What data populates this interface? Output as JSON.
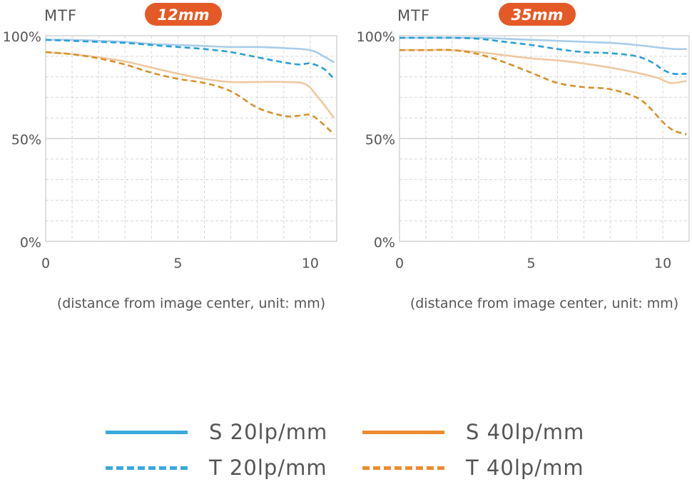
{
  "colors": {
    "s20": "#a8cdea",
    "t20": "#2a9fd4",
    "s40": "#efc9a2",
    "t40": "#d4912d",
    "badge": "#e45a26",
    "grid": "#c8c8c8",
    "axis_text": "#555555"
  },
  "legend": [
    {
      "key": "s20",
      "label": "S 20lp/mm",
      "style": "solid",
      "color": "#3aa9da"
    },
    {
      "key": "s40",
      "label": "S 40lp/mm",
      "style": "solid",
      "color": "#ec8b2f"
    },
    {
      "key": "t20",
      "label": "T 20lp/mm",
      "style": "dashed",
      "color": "#3aa9da"
    },
    {
      "key": "t40",
      "label": "T 40lp/mm",
      "style": "dashed",
      "color": "#ec8b2f"
    }
  ],
  "chart_data": [
    {
      "type": "line",
      "title": "MTF",
      "badge": "12mm",
      "xlabel": "(distance from image center, unit: mm)",
      "ylabel": "",
      "xlim": [
        0,
        11
      ],
      "ylim": [
        0,
        100
      ],
      "xticks": [
        "0",
        "5",
        "10"
      ],
      "yticks": [
        "0%",
        "50%",
        "100%"
      ],
      "grid": true,
      "series": [
        {
          "key": "s20",
          "name": "S 20lp/mm",
          "style": "solid",
          "x": [
            0,
            1,
            2,
            3,
            4,
            5,
            6,
            7,
            8,
            9,
            10,
            10.5,
            10.9
          ],
          "y": [
            98,
            98,
            97.5,
            97,
            96,
            95.5,
            95,
            94.5,
            94.5,
            94,
            93,
            90,
            87
          ]
        },
        {
          "key": "t20",
          "name": "T 20lp/mm",
          "style": "dashed",
          "x": [
            0,
            1,
            2,
            3,
            4,
            5,
            6,
            7,
            8,
            9,
            9.6,
            10,
            10.5,
            10.9
          ],
          "y": [
            98,
            97.5,
            97,
            96.5,
            95.5,
            94.5,
            93.5,
            92,
            89.5,
            87,
            86,
            86.5,
            84,
            79
          ]
        },
        {
          "key": "s40",
          "name": "S 40lp/mm",
          "style": "solid",
          "x": [
            0,
            1,
            2,
            3,
            4,
            5,
            6,
            7,
            8,
            9,
            9.8,
            10.3,
            10.9
          ],
          "y": [
            92,
            91,
            89.5,
            87.5,
            84.5,
            81.5,
            79,
            77.5,
            77.5,
            77.5,
            76.5,
            70,
            60
          ]
        },
        {
          "key": "t40",
          "name": "T 40lp/mm",
          "style": "dashed",
          "x": [
            0,
            1,
            2,
            3,
            4,
            5,
            6,
            7,
            8,
            9,
            9.5,
            10,
            10.4,
            10.9
          ],
          "y": [
            92,
            91,
            89,
            86,
            82,
            79,
            77,
            73,
            65,
            61,
            61,
            61.5,
            58,
            52
          ]
        }
      ]
    },
    {
      "type": "line",
      "title": "MTF",
      "badge": "35mm",
      "xlabel": "(distance from image center, unit: mm)",
      "ylabel": "",
      "xlim": [
        0,
        11
      ],
      "ylim": [
        0,
        100
      ],
      "xticks": [
        "0",
        "5",
        "10"
      ],
      "yticks": [
        "0%",
        "50%",
        "100%"
      ],
      "grid": true,
      "series": [
        {
          "key": "s20",
          "name": "S 20lp/mm",
          "style": "solid",
          "x": [
            0,
            1,
            2,
            3,
            4,
            5,
            6,
            7,
            8,
            9,
            10,
            10.5,
            10.9
          ],
          "y": [
            99,
            99,
            99,
            99,
            98.5,
            98,
            97.5,
            97,
            96.5,
            95.5,
            94,
            93.5,
            93.5
          ]
        },
        {
          "key": "t20",
          "name": "T 20lp/mm",
          "style": "dashed",
          "x": [
            0,
            1,
            2,
            3,
            4,
            5,
            6,
            7,
            8,
            9,
            9.6,
            10,
            10.4,
            10.9
          ],
          "y": [
            99,
            99,
            99,
            98.5,
            97,
            95.5,
            93.5,
            92,
            91.5,
            90,
            87,
            83.5,
            81.5,
            81.5
          ]
        },
        {
          "key": "s40",
          "name": "S 40lp/mm",
          "style": "solid",
          "x": [
            0,
            1,
            2,
            3,
            4,
            5,
            6,
            7,
            8,
            9,
            9.8,
            10.3,
            10.9
          ],
          "y": [
            93,
            93,
            93,
            92,
            90.5,
            89,
            88,
            86.5,
            84.5,
            82,
            79.5,
            77,
            78
          ]
        },
        {
          "key": "t40",
          "name": "T 40lp/mm",
          "style": "dashed",
          "x": [
            0,
            1,
            2,
            3,
            4,
            5,
            6,
            7,
            8,
            9,
            9.5,
            10,
            10.4,
            10.9
          ],
          "y": [
            93,
            93,
            93,
            91,
            87,
            82,
            77,
            75,
            74,
            70,
            65,
            58,
            54,
            52
          ]
        }
      ]
    }
  ]
}
